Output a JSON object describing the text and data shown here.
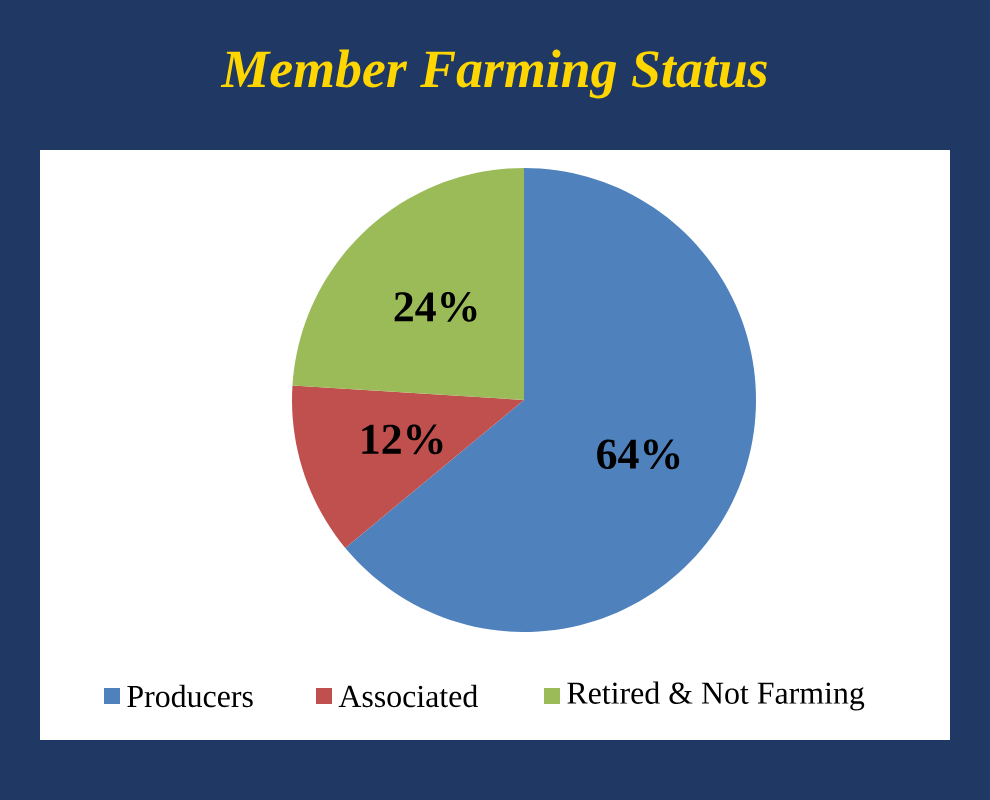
{
  "chart_data": {
    "type": "pie",
    "title": "Member Farming Status",
    "categories": [
      "Producers",
      "Associated",
      "Retired & Not Farming"
    ],
    "values": [
      64,
      12,
      24
    ],
    "value_labels": [
      "64%",
      "12%",
      "24%"
    ],
    "colors": [
      "#4f81bd",
      "#c0504d",
      "#9bbb59"
    ],
    "legend": "bottom"
  }
}
